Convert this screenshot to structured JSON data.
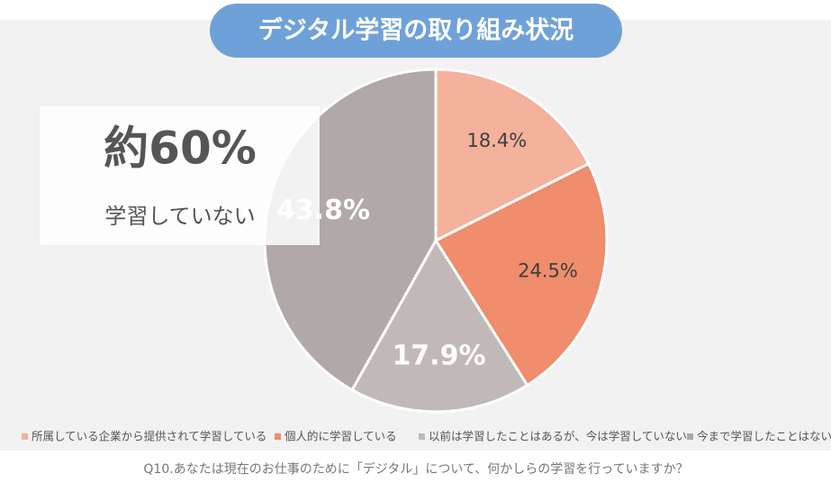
{
  "chart_data": {
    "type": "pie",
    "title": "デジタル学習の取り組み状況",
    "categories": [
      "所属している企業から提供されて学習している",
      "個人的に学習している",
      "以前は学習したことはあるが、今は学習していない",
      "今まで学習したことはない"
    ],
    "values": [
      18.4,
      24.5,
      17.9,
      43.8
    ],
    "value_labels": [
      "18.4%",
      "24.5%",
      "17.9%",
      "43.8%"
    ],
    "colors": [
      "#f4b19b",
      "#ef8d6c",
      "#c1b9b7",
      "#b1a9a7"
    ],
    "label_colors": [
      "#404040",
      "#404040",
      "#ffffff",
      "#ffffff"
    ],
    "annotations": [
      "約60%",
      "学習していない"
    ],
    "caption": "Q10.あなたは現在のお仕事のために「デジタル」について、何かしらの学習を行っていますか？"
  }
}
